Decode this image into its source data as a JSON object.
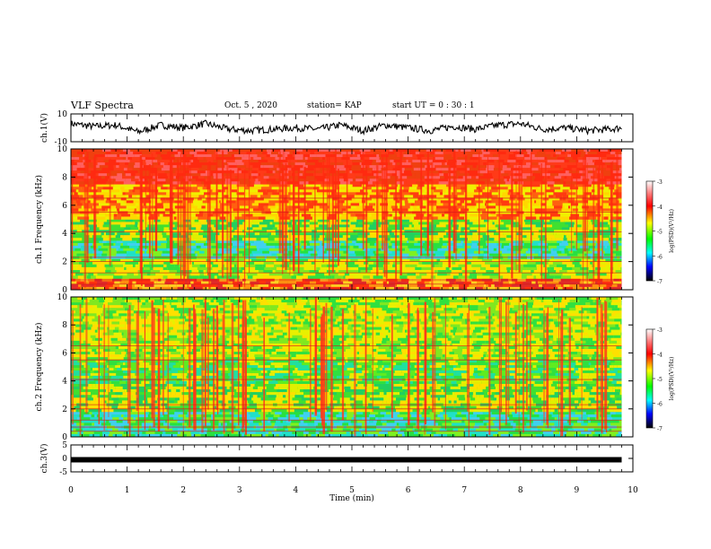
{
  "header": {
    "title": "VLF Spectra",
    "date": "Oct. 5 , 2020",
    "station": "station= KAP",
    "start": "start UT = 0 : 30 : 1"
  },
  "chart_data": [
    {
      "type": "line",
      "title": "",
      "ylabel": "ch.1(V)",
      "ylim": [
        -10,
        10
      ],
      "y_ticks": [
        "10",
        "-10"
      ],
      "x_unit": "min",
      "xlim": [
        0,
        10
      ],
      "x": [
        0,
        0.4,
        0.8,
        1.2,
        1.6,
        2.0,
        2.4,
        2.8,
        3.2,
        3.6,
        4.0,
        4.4,
        4.8,
        5.2,
        5.6,
        6.0,
        6.4,
        6.8,
        7.2,
        7.6,
        8.0,
        8.4,
        8.8,
        9.2,
        9.6,
        9.8
      ],
      "values": [
        3,
        1,
        2,
        -3,
        2,
        0,
        3,
        -1,
        -2,
        -1,
        0,
        -1,
        2,
        -2,
        2,
        0,
        -2,
        1,
        -1,
        2,
        3,
        -1,
        0,
        -2,
        -1,
        0
      ]
    },
    {
      "type": "heatmap",
      "ylabel": "ch.1 Frequency (kHz)",
      "ylim": [
        0,
        10
      ],
      "y_ticks": [
        "0",
        "2",
        "4",
        "6",
        "8",
        "10"
      ],
      "xlim": [
        0,
        10
      ],
      "colorbar": {
        "label": "log(PSD)(V²/Hz)",
        "range": [
          -7,
          -3
        ],
        "ticks": [
          "-3",
          "-4",
          "-5",
          "-6",
          "-7"
        ]
      },
      "bands": [
        {
          "from": 0,
          "to": 0.8,
          "level": "orange-red"
        },
        {
          "from": 0.8,
          "to": 2.2,
          "level": "yellow-green"
        },
        {
          "from": 2.2,
          "to": 3.5,
          "level": "cyan-green"
        },
        {
          "from": 3.5,
          "to": 5.0,
          "level": "green-yellow"
        },
        {
          "from": 5.0,
          "to": 7.5,
          "level": "yellow-red"
        },
        {
          "from": 7.5,
          "to": 10,
          "level": "red"
        }
      ]
    },
    {
      "type": "heatmap",
      "ylabel": "ch.2 Frequency (kHz)",
      "ylim": [
        0,
        10
      ],
      "y_ticks": [
        "0",
        "2",
        "4",
        "6",
        "8",
        "10"
      ],
      "xlim": [
        0,
        10
      ],
      "colorbar": {
        "label": "log(PSD)(V²/Hz)",
        "range": [
          -7,
          -3
        ],
        "ticks": [
          "-3",
          "-4",
          "-5",
          "-6",
          "-7"
        ]
      },
      "bands": [
        {
          "from": 0,
          "to": 1.8,
          "level": "cyan-green"
        },
        {
          "from": 1.8,
          "to": 3.8,
          "level": "green-yellow"
        },
        {
          "from": 3.8,
          "to": 5.5,
          "level": "green"
        },
        {
          "from": 5.5,
          "to": 10,
          "level": "yellow-green"
        }
      ]
    },
    {
      "type": "line",
      "ylabel": "ch.3(V)",
      "ylim": [
        -5,
        5
      ],
      "y_ticks": [
        "5",
        "0",
        "-5"
      ],
      "xlim": [
        0,
        10
      ],
      "x": [
        0,
        9.8
      ],
      "values": [
        -0.5,
        -0.5
      ]
    }
  ],
  "x_axis": {
    "label": "Time (min)",
    "ticks": [
      "0",
      "1",
      "2",
      "3",
      "4",
      "5",
      "6",
      "7",
      "8",
      "9",
      "10"
    ]
  },
  "colors": {
    "trace": "#000000",
    "spec_red": "#ff2a10",
    "spec_yellow": "#f4f000",
    "spec_green": "#28e040",
    "spec_cyan": "#20e0d0"
  }
}
